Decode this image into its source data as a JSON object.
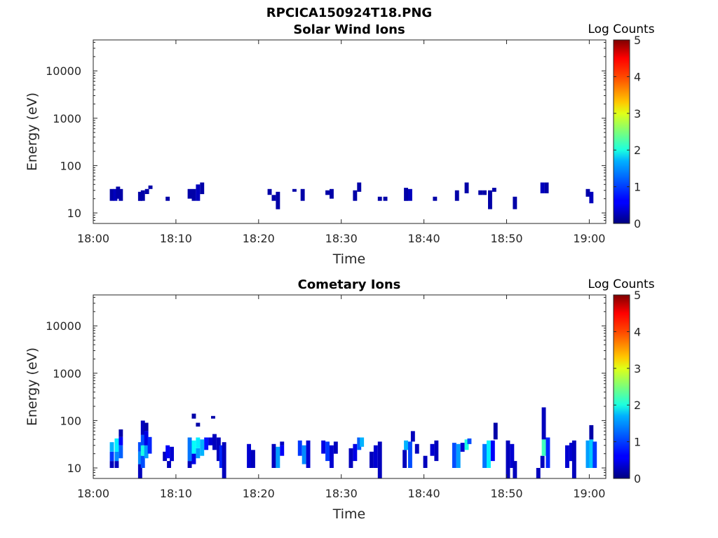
{
  "figure_title": "RPCICA150924T18.PNG",
  "colors": {
    "colormap": "jet",
    "frame": "#262626"
  },
  "chart_data": [
    {
      "type": "heatmap",
      "title": "Solar Wind Ions",
      "xlabel": "Time",
      "ylabel": "Energy (eV)",
      "xticks": [
        "18:00",
        "18:10",
        "18:20",
        "18:30",
        "18:40",
        "18:50",
        "19:00"
      ],
      "yticks": [
        "10",
        "100",
        "1000",
        "10000"
      ],
      "y_scale": "log",
      "ylim_eV": [
        6,
        45000
      ],
      "xlim": [
        "18:00",
        "19:02"
      ],
      "colorbar": {
        "label": "Log Counts",
        "ticks": [
          "0",
          "1",
          "2",
          "3",
          "4",
          "5"
        ],
        "range": [
          0,
          5
        ]
      },
      "cells": [
        [
          "18:02:15",
          18,
          32,
          0.2
        ],
        [
          "18:02:40",
          18,
          32,
          0.3
        ],
        [
          "18:03:00",
          20,
          36,
          0.2
        ],
        [
          "18:03:20",
          18,
          32,
          0.2
        ],
        [
          "18:05:40",
          18,
          28,
          0.2
        ],
        [
          "18:06:00",
          18,
          30,
          0.2
        ],
        [
          "18:06:30",
          25,
          32,
          0.2
        ],
        [
          "18:06:55",
          32,
          38,
          0.2
        ],
        [
          "18:09:00",
          18,
          22,
          0.2
        ],
        [
          "18:11:40",
          20,
          32,
          0.2
        ],
        [
          "18:12:10",
          18,
          32,
          0.2
        ],
        [
          "18:12:40",
          18,
          40,
          0.3
        ],
        [
          "18:13:10",
          25,
          44,
          0.2
        ],
        [
          "18:21:20",
          24,
          32,
          0.2
        ],
        [
          "18:21:50",
          18,
          24,
          0.2
        ],
        [
          "18:22:20",
          12,
          28,
          0.2
        ],
        [
          "18:24:20",
          28,
          32,
          0.2
        ],
        [
          "18:25:20",
          18,
          32,
          0.2
        ],
        [
          "18:28:20",
          24,
          30,
          0.2
        ],
        [
          "18:28:50",
          20,
          32,
          0.2
        ],
        [
          "18:31:40",
          18,
          30,
          0.2
        ],
        [
          "18:32:10",
          28,
          44,
          0.2
        ],
        [
          "18:34:40",
          18,
          22,
          0.2
        ],
        [
          "18:35:20",
          18,
          22,
          0.2
        ],
        [
          "18:37:50",
          18,
          34,
          0.2
        ],
        [
          "18:38:20",
          18,
          32,
          0.3
        ],
        [
          "18:41:20",
          18,
          22,
          0.2
        ],
        [
          "18:44:00",
          18,
          30,
          0.2
        ],
        [
          "18:45:10",
          26,
          44,
          0.2
        ],
        [
          "18:46:50",
          24,
          30,
          0.2
        ],
        [
          "18:47:20",
          24,
          30,
          0.2
        ],
        [
          "18:48:00",
          12,
          30,
          0.2
        ],
        [
          "18:48:30",
          28,
          34,
          0.2
        ],
        [
          "18:51:00",
          12,
          22,
          0.2
        ],
        [
          "18:54:20",
          26,
          44,
          0.3
        ],
        [
          "18:54:50",
          26,
          44,
          0.2
        ],
        [
          "18:59:50",
          22,
          32,
          0.2
        ],
        [
          "19:00:15",
          16,
          28,
          0.3
        ]
      ]
    },
    {
      "type": "heatmap",
      "title": "Cometary Ions",
      "xlabel": "Time",
      "ylabel": "Energy (eV)",
      "xticks": [
        "18:00",
        "18:10",
        "18:20",
        "18:30",
        "18:40",
        "18:50",
        "19:00"
      ],
      "yticks": [
        "10",
        "100",
        "1000",
        "10000"
      ],
      "y_scale": "log",
      "ylim_eV": [
        6,
        45000
      ],
      "xlim": [
        "18:00",
        "19:02"
      ],
      "colorbar": {
        "label": "Log Counts",
        "ticks": [
          "0",
          "1",
          "2",
          "3",
          "4",
          "5"
        ],
        "range": [
          0,
          5
        ]
      },
      "cells": [
        [
          "18:02:15",
          10,
          14,
          0.3
        ],
        [
          "18:02:15",
          14,
          22,
          0.9
        ],
        [
          "18:02:15",
          22,
          35,
          1.5
        ],
        [
          "18:02:50",
          10,
          14,
          0.3
        ],
        [
          "18:02:50",
          14,
          22,
          1.3
        ],
        [
          "18:02:50",
          22,
          42,
          1.8
        ],
        [
          "18:03:20",
          16,
          30,
          1.1
        ],
        [
          "18:03:20",
          30,
          45,
          0.6
        ],
        [
          "18:03:20",
          45,
          65,
          0.2
        ],
        [
          "18:05:40",
          6,
          12,
          0.3
        ],
        [
          "18:05:40",
          12,
          22,
          1.3
        ],
        [
          "18:05:40",
          22,
          35,
          1.0
        ],
        [
          "18:06:00",
          10,
          18,
          1.0
        ],
        [
          "18:06:00",
          18,
          30,
          2.0
        ],
        [
          "18:06:00",
          30,
          50,
          1.0
        ],
        [
          "18:06:00",
          50,
          100,
          0.3
        ],
        [
          "18:06:25",
          16,
          30,
          1.4
        ],
        [
          "18:06:25",
          30,
          60,
          0.5
        ],
        [
          "18:06:25",
          60,
          90,
          0.2
        ],
        [
          "18:06:50",
          20,
          45,
          0.8
        ],
        [
          "18:08:40",
          14,
          22,
          0.3
        ],
        [
          "18:09:00",
          16,
          30,
          0.6
        ],
        [
          "18:09:10",
          10,
          14,
          0.3
        ],
        [
          "18:09:30",
          14,
          28,
          0.4
        ],
        [
          "18:11:40",
          10,
          14,
          0.3
        ],
        [
          "18:11:40",
          14,
          44,
          1.2
        ],
        [
          "18:12:10",
          12,
          20,
          0.5
        ],
        [
          "18:12:10",
          20,
          38,
          1.9
        ],
        [
          "18:12:10",
          110,
          140,
          0.2
        ],
        [
          "18:12:40",
          16,
          26,
          1.4
        ],
        [
          "18:12:40",
          26,
          44,
          1.8
        ],
        [
          "18:12:40",
          75,
          90,
          0.2
        ],
        [
          "18:13:10",
          18,
          40,
          1.5
        ],
        [
          "18:13:40",
          24,
          44,
          0.7
        ],
        [
          "18:14:10",
          30,
          44,
          0.4
        ],
        [
          "18:14:30",
          110,
          125,
          0.2
        ],
        [
          "18:14:40",
          24,
          52,
          0.3
        ],
        [
          "18:15:10",
          14,
          44,
          0.3
        ],
        [
          "18:15:30",
          10,
          30,
          0.8
        ],
        [
          "18:15:50",
          6,
          35,
          0.3
        ],
        [
          "18:18:50",
          10,
          32,
          0.4
        ],
        [
          "18:19:20",
          10,
          24,
          0.3
        ],
        [
          "18:21:50",
          10,
          32,
          0.3
        ],
        [
          "18:22:20",
          10,
          28,
          1.4
        ],
        [
          "18:22:50",
          30,
          36,
          0.3
        ],
        [
          "18:22:50",
          18,
          30,
          0.6
        ],
        [
          "18:25:00",
          18,
          38,
          0.9
        ],
        [
          "18:25:30",
          12,
          30,
          1.3
        ],
        [
          "18:26:00",
          10,
          38,
          0.4
        ],
        [
          "18:27:50",
          20,
          38,
          0.5
        ],
        [
          "18:28:20",
          14,
          36,
          0.9
        ],
        [
          "18:28:50",
          10,
          30,
          0.4
        ],
        [
          "18:29:20",
          20,
          36,
          0.3
        ],
        [
          "18:31:10",
          10,
          26,
          0.3
        ],
        [
          "18:31:40",
          14,
          32,
          0.5
        ],
        [
          "18:32:10",
          24,
          44,
          1.1
        ],
        [
          "18:32:30",
          28,
          44,
          1.5
        ],
        [
          "18:33:40",
          10,
          22,
          0.3
        ],
        [
          "18:34:10",
          10,
          30,
          0.4
        ],
        [
          "18:34:40",
          6,
          36,
          0.3
        ],
        [
          "18:37:40",
          10,
          24,
          0.3
        ],
        [
          "18:37:50",
          24,
          38,
          1.5
        ],
        [
          "18:38:20",
          10,
          36,
          1.0
        ],
        [
          "18:38:40",
          36,
          60,
          0.3
        ],
        [
          "18:39:10",
          20,
          32,
          0.3
        ],
        [
          "18:40:10",
          10,
          18,
          0.3
        ],
        [
          "18:41:00",
          18,
          32,
          0.4
        ],
        [
          "18:41:30",
          14,
          38,
          0.3
        ],
        [
          "18:43:40",
          10,
          34,
          1.0
        ],
        [
          "18:44:10",
          10,
          32,
          1.4
        ],
        [
          "18:44:40",
          22,
          34,
          0.4
        ],
        [
          "18:45:10",
          24,
          40,
          2.0
        ],
        [
          "18:45:30",
          32,
          42,
          1.0
        ],
        [
          "18:47:20",
          10,
          32,
          1.2
        ],
        [
          "18:47:50",
          10,
          38,
          1.8
        ],
        [
          "18:48:20",
          14,
          38,
          0.6
        ],
        [
          "18:48:40",
          40,
          90,
          0.2
        ],
        [
          "18:50:10",
          6,
          38,
          0.3
        ],
        [
          "18:50:40",
          10,
          32,
          0.4
        ],
        [
          "18:51:00",
          6,
          14,
          0.3
        ],
        [
          "18:53:50",
          6,
          10,
          0.3
        ],
        [
          "18:54:20",
          10,
          18,
          0.3
        ],
        [
          "18:54:30",
          18,
          40,
          2.2
        ],
        [
          "18:54:30",
          40,
          190,
          0.3
        ],
        [
          "18:55:00",
          10,
          44,
          0.8
        ],
        [
          "18:57:20",
          10,
          30,
          0.4
        ],
        [
          "18:57:50",
          14,
          34,
          0.4
        ],
        [
          "18:58:10",
          6,
          38,
          0.3
        ],
        [
          "18:59:50",
          10,
          38,
          1.4
        ],
        [
          "19:00:15",
          10,
          40,
          1.6
        ],
        [
          "19:00:15",
          40,
          80,
          0.2
        ],
        [
          "19:00:40",
          10,
          36,
          0.9
        ]
      ]
    }
  ]
}
